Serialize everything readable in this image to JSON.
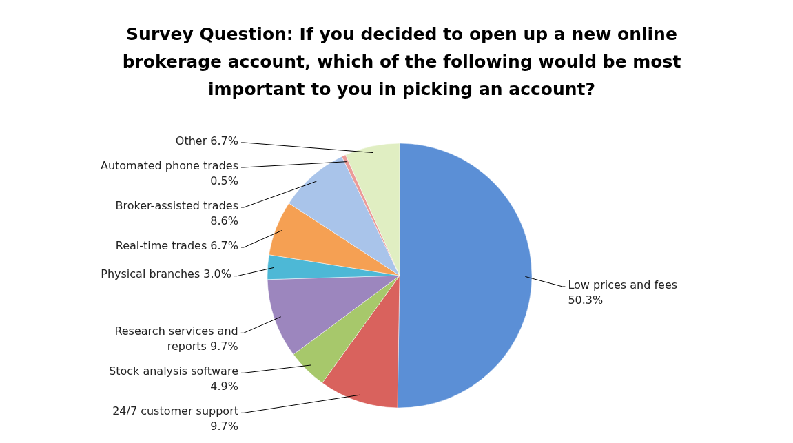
{
  "chart_data": {
    "type": "pie",
    "title": "Survey Question: If you decided to open up a new online brokerage account, which of the following would be most important to you in picking an account?",
    "categories": [
      "Low prices and fees",
      "24/7 customer support",
      "Stock analysis software",
      "Research services and reports",
      "Physical branches",
      "Real-time trades",
      "Broker-assisted trades",
      "Automated phone trades",
      "Other"
    ],
    "values": [
      50.3,
      9.7,
      4.9,
      9.7,
      3.0,
      6.7,
      8.6,
      0.5,
      6.7
    ],
    "colors": [
      "#5b8fd6",
      "#d9625d",
      "#a7c86b",
      "#9c86be",
      "#4db8d6",
      "#f5a053",
      "#a9c4ea",
      "#eb9b98",
      "#e0eec2"
    ],
    "value_labels": [
      "50.3%",
      "9.7%",
      "4.9%",
      "9.7%",
      "3.0%",
      "6.7%",
      "8.6%",
      "0.5%",
      "6.7%"
    ]
  }
}
